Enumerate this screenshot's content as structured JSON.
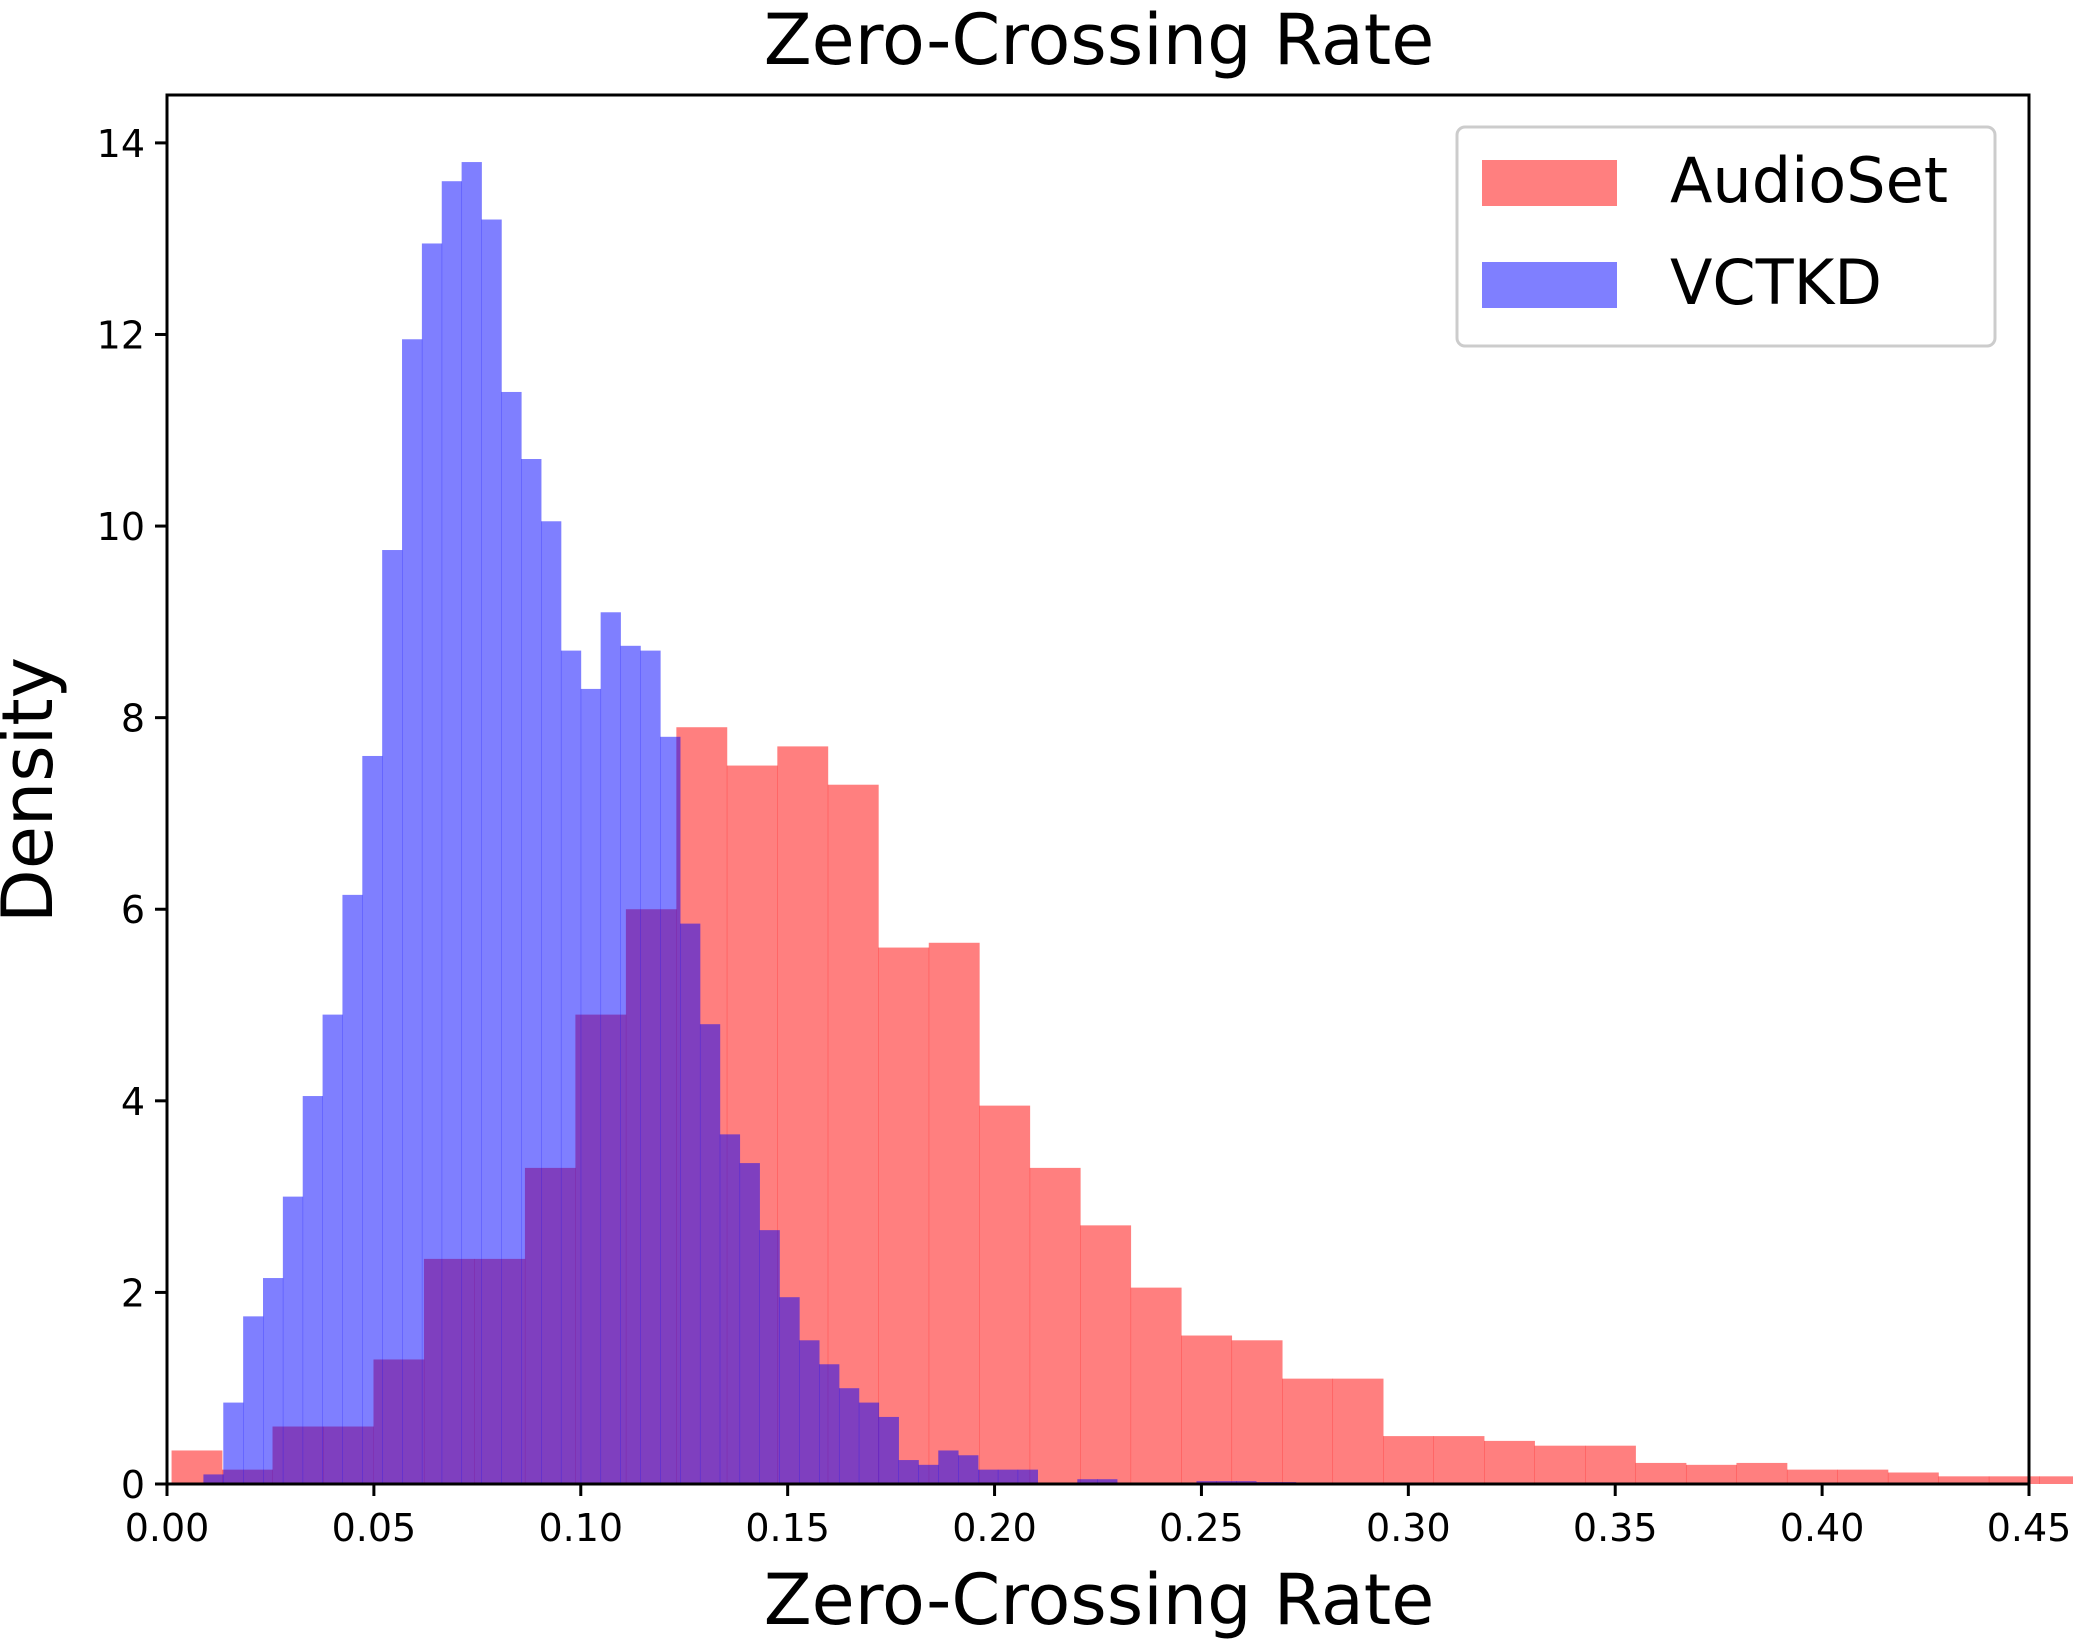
{
  "chart_data": {
    "type": "histogram",
    "title": "Zero-Crossing Rate",
    "xlabel": "Zero-Crossing Rate",
    "ylabel": "Density",
    "xlim": [
      0.0,
      0.45
    ],
    "ylim": [
      0,
      14.5
    ],
    "xticks": [
      0.0,
      0.05,
      0.1,
      0.15,
      0.2,
      0.25,
      0.3,
      0.35,
      0.4,
      0.45
    ],
    "xtick_labels": [
      "0.00",
      "0.05",
      "0.10",
      "0.15",
      "0.20",
      "0.25",
      "0.30",
      "0.35",
      "0.40",
      "0.45"
    ],
    "yticks": [
      0,
      2,
      4,
      6,
      8,
      10,
      12,
      14
    ],
    "ytick_labels": [
      "0",
      "2",
      "4",
      "6",
      "8",
      "10",
      "12",
      "14"
    ],
    "grid": false,
    "legend": {
      "placement": "top-right"
    },
    "series": [
      {
        "name": "AudioSet",
        "color": "#ff0000",
        "alpha": 0.5,
        "bin_start": 0.0011,
        "bin_width": 0.0122,
        "values": [
          0.35,
          0.15,
          0.6,
          0.6,
          1.3,
          2.35,
          2.35,
          3.3,
          4.9,
          6.0,
          7.9,
          7.5,
          7.7,
          7.3,
          5.6,
          5.65,
          3.95,
          3.3,
          2.7,
          2.05,
          1.55,
          1.5,
          1.1,
          1.1,
          0.5,
          0.5,
          0.45,
          0.4,
          0.4,
          0.22,
          0.2,
          0.22,
          0.15,
          0.15,
          0.12,
          0.08,
          0.08,
          0.08,
          0.07,
          0.05
        ]
      },
      {
        "name": "VCTKD",
        "color": "#0000ff",
        "alpha": 0.5,
        "bin_start": 0.0088,
        "bin_width": 0.0048,
        "values": [
          0.1,
          0.85,
          1.75,
          2.15,
          3.0,
          4.05,
          4.9,
          6.15,
          7.6,
          9.75,
          11.95,
          12.95,
          13.6,
          13.8,
          13.2,
          11.4,
          10.7,
          10.05,
          8.7,
          8.3,
          9.1,
          8.75,
          8.7,
          7.8,
          5.85,
          4.8,
          3.65,
          3.35,
          2.65,
          1.95,
          1.5,
          1.25,
          1.0,
          0.85,
          0.7,
          0.25,
          0.2,
          0.35,
          0.3,
          0.15,
          0.15,
          0.15,
          0.0,
          0.0,
          0.05,
          0.05,
          0.0,
          0.0,
          0.0,
          0.0,
          0.03,
          0.03,
          0.03,
          0.02,
          0.02
        ]
      }
    ]
  }
}
